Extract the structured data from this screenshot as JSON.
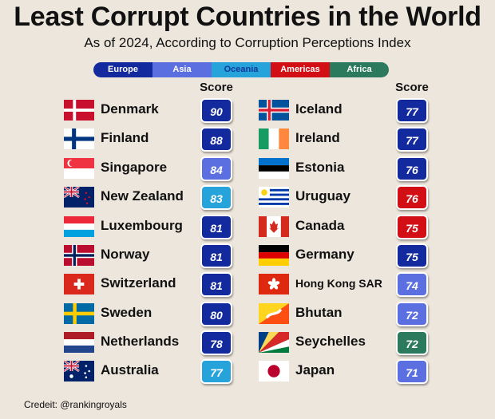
{
  "chart_data": {
    "type": "table",
    "title": "Least Corrupt Countries in the World",
    "subtitle": "As of 2024, According to Corruption Perceptions Index",
    "score_header": "Score",
    "regions": [
      {
        "name": "Europe",
        "color": "#132a9e"
      },
      {
        "name": "Asia",
        "color": "#5b6fe0"
      },
      {
        "name": "Oceania",
        "color": "#27a3dc"
      },
      {
        "name": "Americas",
        "color": "#d10f14"
      },
      {
        "name": "Africa",
        "color": "#2b7a5d"
      }
    ],
    "left_column": [
      {
        "country": "Denmark",
        "flag": "DK",
        "region": "Europe",
        "score": 90
      },
      {
        "country": "Finland",
        "flag": "FI",
        "region": "Europe",
        "score": 88
      },
      {
        "country": "Singapore",
        "flag": "SG",
        "region": "Asia",
        "score": 84
      },
      {
        "country": "New Zealand",
        "flag": "NZ",
        "region": "Oceania",
        "score": 83
      },
      {
        "country": "Luxembourg",
        "flag": "LU",
        "region": "Europe",
        "score": 81
      },
      {
        "country": "Norway",
        "flag": "NO",
        "region": "Europe",
        "score": 81
      },
      {
        "country": "Switzerland",
        "flag": "CH",
        "region": "Europe",
        "score": 81
      },
      {
        "country": "Sweden",
        "flag": "SE",
        "region": "Europe",
        "score": 80
      },
      {
        "country": "Netherlands",
        "flag": "NL",
        "region": "Europe",
        "score": 78
      },
      {
        "country": "Australia",
        "flag": "AU",
        "region": "Oceania",
        "score": 77
      }
    ],
    "right_column": [
      {
        "country": "Iceland",
        "flag": "IS",
        "region": "Europe",
        "score": 77
      },
      {
        "country": "Ireland",
        "flag": "IE",
        "region": "Europe",
        "score": 77
      },
      {
        "country": "Estonia",
        "flag": "EE",
        "region": "Europe",
        "score": 76
      },
      {
        "country": "Uruguay",
        "flag": "UY",
        "region": "Americas",
        "score": 76
      },
      {
        "country": "Canada",
        "flag": "CA",
        "region": "Americas",
        "score": 75
      },
      {
        "country": "Germany",
        "flag": "DE",
        "region": "Europe",
        "score": 75
      },
      {
        "country": "Hong Kong SAR",
        "flag": "HK",
        "region": "Asia",
        "score": 74
      },
      {
        "country": "Bhutan",
        "flag": "BT",
        "region": "Asia",
        "score": 72
      },
      {
        "country": "Seychelles",
        "flag": "SC",
        "region": "Africa",
        "score": 72
      },
      {
        "country": "Japan",
        "flag": "JP",
        "region": "Asia",
        "score": 71
      }
    ]
  },
  "credit": "Credeit: @rankingroyals"
}
